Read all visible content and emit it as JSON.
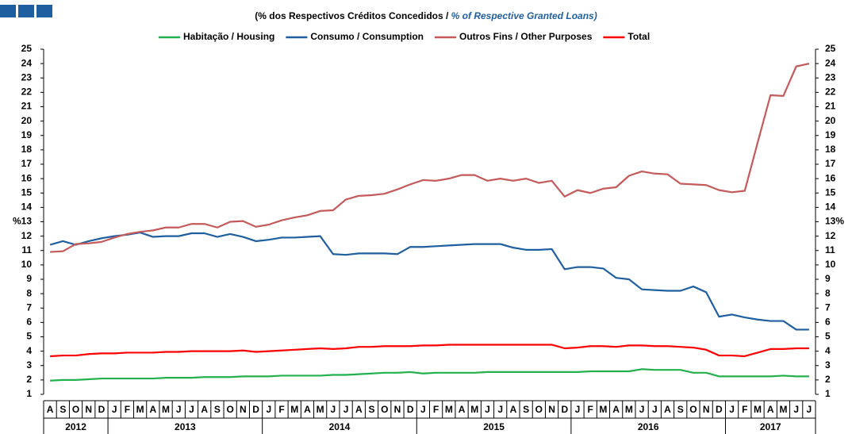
{
  "chart_data": {
    "type": "line",
    "subtitle": "(% dos Respectivos  Créditos Concedidos  / ",
    "subtitle_en": "% of Respective Granted Loans)",
    "categories": [
      "A",
      "S",
      "O",
      "N",
      "D",
      "J",
      "F",
      "M",
      "A",
      "M",
      "J",
      "J",
      "A",
      "S",
      "O",
      "N",
      "D",
      "J",
      "F",
      "M",
      "A",
      "M",
      "J",
      "J",
      "A",
      "S",
      "O",
      "N",
      "D",
      "J",
      "F",
      "M",
      "A",
      "M",
      "J",
      "J",
      "A",
      "S",
      "O",
      "N",
      "D",
      "J",
      "F",
      "M",
      "A",
      "M",
      "J",
      "J",
      "A",
      "S",
      "O",
      "N",
      "D",
      "J",
      "F",
      "M",
      "A",
      "M",
      "J",
      "J"
    ],
    "year_groups": [
      {
        "label": "2012",
        "months": 5
      },
      {
        "label": "2013",
        "months": 12
      },
      {
        "label": "2014",
        "months": 12
      },
      {
        "label": "2015",
        "months": 12
      },
      {
        "label": "2016",
        "months": 12
      },
      {
        "label": "2017",
        "months": 7
      }
    ],
    "series": [
      {
        "name": "Habitação / Housing",
        "color": "#22b14c",
        "values": [
          1.95,
          2.0,
          2.0,
          2.05,
          2.1,
          2.1,
          2.1,
          2.1,
          2.1,
          2.15,
          2.15,
          2.15,
          2.2,
          2.2,
          2.2,
          2.25,
          2.25,
          2.25,
          2.3,
          2.3,
          2.3,
          2.3,
          2.35,
          2.35,
          2.4,
          2.45,
          2.5,
          2.5,
          2.55,
          2.45,
          2.5,
          2.5,
          2.5,
          2.5,
          2.55,
          2.55,
          2.55,
          2.55,
          2.55,
          2.55,
          2.55,
          2.55,
          2.6,
          2.6,
          2.6,
          2.6,
          2.75,
          2.7,
          2.7,
          2.7,
          2.5,
          2.5,
          2.25,
          2.25,
          2.25,
          2.25,
          2.25,
          2.3,
          2.25,
          2.25
        ]
      },
      {
        "name": "Consumo / Consumption",
        "color": "#1f5fa0",
        "values": [
          11.4,
          11.65,
          11.4,
          11.65,
          11.85,
          12.0,
          12.1,
          12.25,
          11.95,
          12.0,
          12.0,
          12.2,
          12.2,
          11.95,
          12.15,
          11.95,
          11.65,
          11.75,
          11.9,
          11.9,
          11.95,
          12.0,
          10.75,
          10.7,
          10.8,
          10.8,
          10.8,
          10.75,
          11.25,
          11.25,
          11.3,
          11.35,
          11.4,
          11.45,
          11.45,
          11.45,
          11.2,
          11.05,
          11.05,
          11.1,
          9.7,
          9.85,
          9.85,
          9.75,
          9.1,
          9.0,
          8.3,
          8.25,
          8.2,
          8.2,
          8.5,
          8.1,
          6.4,
          6.55,
          6.35,
          6.2,
          6.1,
          6.1,
          5.5,
          5.5
        ]
      },
      {
        "name": "Outros Fins / Other Purposes",
        "color": "#c55a5a",
        "values": [
          10.9,
          10.95,
          11.45,
          11.5,
          11.6,
          11.9,
          12.15,
          12.3,
          12.4,
          12.6,
          12.6,
          12.85,
          12.85,
          12.6,
          13.0,
          13.05,
          12.65,
          12.8,
          13.1,
          13.3,
          13.45,
          13.75,
          13.8,
          14.55,
          14.8,
          14.85,
          14.95,
          15.25,
          15.6,
          15.9,
          15.85,
          16.0,
          16.25,
          16.25,
          15.85,
          16.0,
          15.85,
          16.0,
          15.7,
          15.85,
          14.75,
          15.2,
          15.0,
          15.3,
          15.4,
          16.2,
          16.5,
          16.35,
          16.3,
          15.65,
          15.6,
          15.55,
          15.2,
          15.05,
          15.15,
          18.5,
          21.8,
          21.75,
          23.8,
          24.0
        ]
      },
      {
        "name": "Total",
        "color": "#ff0000",
        "values": [
          3.65,
          3.7,
          3.7,
          3.8,
          3.85,
          3.85,
          3.9,
          3.9,
          3.9,
          3.95,
          3.95,
          4.0,
          4.0,
          4.0,
          4.0,
          4.05,
          3.95,
          4.0,
          4.05,
          4.1,
          4.15,
          4.2,
          4.15,
          4.2,
          4.3,
          4.3,
          4.35,
          4.35,
          4.35,
          4.4,
          4.4,
          4.45,
          4.45,
          4.45,
          4.45,
          4.45,
          4.45,
          4.45,
          4.45,
          4.45,
          4.2,
          4.25,
          4.35,
          4.35,
          4.3,
          4.4,
          4.4,
          4.35,
          4.35,
          4.3,
          4.25,
          4.1,
          3.7,
          3.7,
          3.65,
          3.9,
          4.15,
          4.15,
          4.2,
          4.2
        ]
      }
    ],
    "ylim": [
      1,
      25
    ],
    "yticks": [
      1,
      2,
      3,
      4,
      5,
      6,
      7,
      8,
      9,
      10,
      11,
      12,
      {
        "value": 13,
        "label": "%13"
      },
      14,
      15,
      16,
      17,
      18,
      19,
      20,
      21,
      22,
      23,
      24,
      25
    ],
    "y2lim": [
      1,
      25
    ],
    "y2ticks": [
      1,
      2,
      3,
      4,
      5,
      6,
      7,
      8,
      9,
      10,
      11,
      12,
      {
        "value": 13,
        "label": "13%"
      },
      14,
      15,
      16,
      17,
      18,
      19,
      20,
      21,
      22,
      23,
      24,
      25
    ],
    "grid": false
  }
}
